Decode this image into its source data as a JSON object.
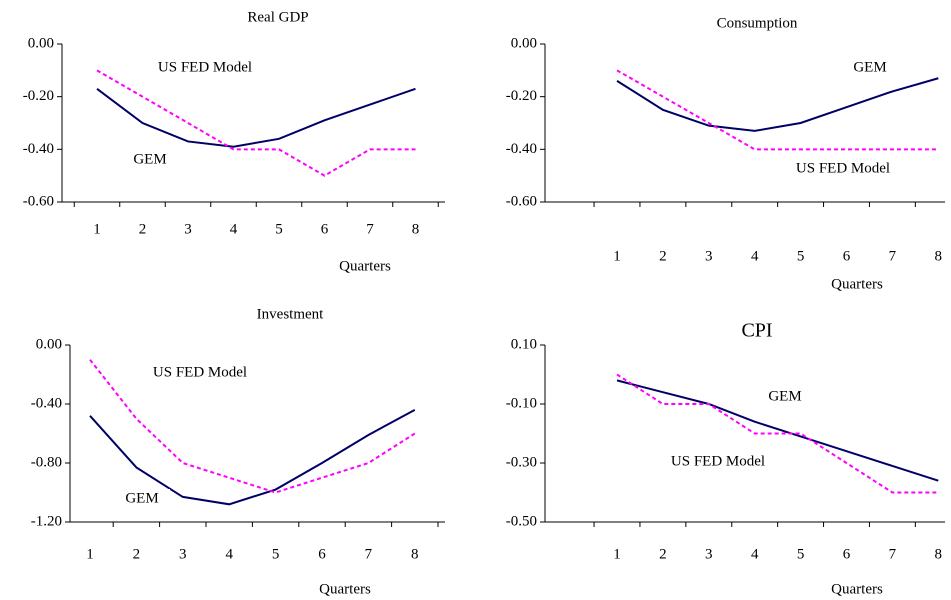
{
  "chart_data": [
    {
      "type": "line",
      "title": "Real GDP",
      "x_label": "Quarters",
      "categories": [
        "1",
        "2",
        "3",
        "4",
        "5",
        "6",
        "7",
        "8"
      ],
      "ylim": [
        -0.6,
        0
      ],
      "yticks": [
        {
          "value": 0,
          "label": "0.00"
        },
        {
          "value": -0.2,
          "label": "-0.20"
        },
        {
          "value": -0.4,
          "label": "-0.40"
        },
        {
          "value": -0.6,
          "label": "-0.60"
        }
      ],
      "series": [
        {
          "name": "GEM",
          "color": "#000066",
          "values": [
            -0.17,
            -0.3,
            -0.37,
            -0.39,
            -0.36,
            -0.29,
            -0.23,
            -0.17
          ]
        },
        {
          "name": "US FED Model",
          "color": "#ff00ff",
          "values": [
            -0.1,
            -0.2,
            -0.3,
            -0.4,
            -0.4,
            -0.5,
            -0.4,
            -0.4
          ]
        }
      ]
    },
    {
      "type": "line",
      "title": "Consumption",
      "x_label": "Quarters",
      "categories": [
        "1",
        "2",
        "3",
        "4",
        "5",
        "6",
        "7",
        "8"
      ],
      "ylim": [
        -0.6,
        0
      ],
      "yticks": [
        {
          "value": 0,
          "label": "0.00"
        },
        {
          "value": -0.2,
          "label": "-0.20"
        },
        {
          "value": -0.4,
          "label": "-0.40"
        },
        {
          "value": -0.6,
          "label": "-0.60"
        }
      ],
      "series": [
        {
          "name": "GEM",
          "color": "#000066",
          "values": [
            -0.14,
            -0.25,
            -0.31,
            -0.33,
            -0.3,
            -0.24,
            -0.18,
            -0.13
          ]
        },
        {
          "name": "US FED Model",
          "color": "#ff00ff",
          "values": [
            -0.1,
            -0.2,
            -0.3,
            -0.4,
            -0.4,
            -0.4,
            -0.4,
            -0.4
          ]
        }
      ]
    },
    {
      "type": "line",
      "title": "Investment",
      "x_label": "Quarters",
      "categories": [
        "1",
        "2",
        "3",
        "4",
        "5",
        "6",
        "7",
        "8"
      ],
      "ylim": [
        -1.2,
        0
      ],
      "yticks": [
        {
          "value": 0,
          "label": "0.00"
        },
        {
          "value": -0.4,
          "label": "-0.40"
        },
        {
          "value": -0.8,
          "label": "-0.80"
        },
        {
          "value": -1.2,
          "label": "-1.20"
        }
      ],
      "series": [
        {
          "name": "GEM",
          "color": "#000066",
          "values": [
            -0.48,
            -0.83,
            -1.03,
            -1.08,
            -0.98,
            -0.8,
            -0.61,
            -0.44
          ]
        },
        {
          "name": "US FED Model",
          "color": "#ff00ff",
          "values": [
            -0.1,
            -0.5,
            -0.8,
            -0.9,
            -1.0,
            -0.9,
            -0.8,
            -0.6
          ]
        }
      ]
    },
    {
      "type": "line",
      "title": "CPI",
      "x_label": "Quarters",
      "categories": [
        "1",
        "2",
        "3",
        "4",
        "5",
        "6",
        "7",
        "8"
      ],
      "ylim": [
        -0.5,
        0.1
      ],
      "yticks": [
        {
          "value": 0.1,
          "label": "0.10"
        },
        {
          "value": -0.1,
          "label": "-0.10"
        },
        {
          "value": -0.3,
          "label": "-0.30"
        },
        {
          "value": -0.5,
          "label": "-0.50"
        }
      ],
      "series": [
        {
          "name": "GEM",
          "color": "#000066",
          "values": [
            -0.02,
            -0.06,
            -0.1,
            -0.16,
            -0.21,
            -0.26,
            -0.31,
            -0.36
          ]
        },
        {
          "name": "US FED Model",
          "color": "#ff00ff",
          "values": [
            0.0,
            -0.1,
            -0.1,
            -0.2,
            -0.2,
            -0.3,
            -0.4,
            -0.4
          ]
        }
      ]
    }
  ]
}
